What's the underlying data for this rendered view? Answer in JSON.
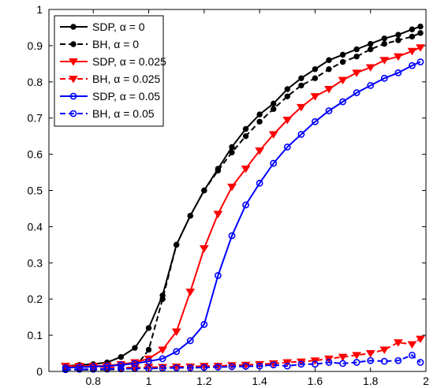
{
  "chart_data": {
    "type": "line",
    "title": "",
    "xlabel": "",
    "ylabel": "",
    "xlim": [
      0.64,
      2.0
    ],
    "ylim": [
      0,
      1.0
    ],
    "grid": false,
    "legend_placement": "top-left",
    "xticks": [
      "0.8",
      "1",
      "1.2",
      "1.4",
      "1.6",
      "1.8",
      "2"
    ],
    "yticks": [
      "0",
      "0.1",
      "0.2",
      "0.3",
      "0.4",
      "0.5",
      "0.6",
      "0.7",
      "0.8",
      "0.9",
      "1"
    ],
    "series": [
      {
        "name": "SDP, α = 0",
        "color": "#000000",
        "style": "solid",
        "marker": "dot",
        "x": [
          0.7,
          0.75,
          0.8,
          0.85,
          0.9,
          0.95,
          1.0,
          1.05,
          1.1,
          1.15,
          1.2,
          1.25,
          1.3,
          1.35,
          1.4,
          1.45,
          1.5,
          1.55,
          1.6,
          1.65,
          1.7,
          1.75,
          1.8,
          1.85,
          1.9,
          1.95,
          1.98
        ],
        "y": [
          0.015,
          0.018,
          0.02,
          0.025,
          0.04,
          0.065,
          0.12,
          0.21,
          0.35,
          0.43,
          0.5,
          0.56,
          0.62,
          0.67,
          0.71,
          0.74,
          0.78,
          0.81,
          0.835,
          0.86,
          0.875,
          0.89,
          0.905,
          0.92,
          0.93,
          0.945,
          0.953
        ]
      },
      {
        "name": "BH, α = 0",
        "color": "#000000",
        "style": "dashed",
        "marker": "dot",
        "x": [
          0.7,
          0.75,
          0.8,
          0.85,
          0.9,
          0.95,
          1.0,
          1.05,
          1.1,
          1.15,
          1.2,
          1.25,
          1.3,
          1.35,
          1.4,
          1.45,
          1.5,
          1.55,
          1.6,
          1.65,
          1.7,
          1.75,
          1.8,
          1.85,
          1.9,
          1.95,
          1.98
        ],
        "y": [
          0.005,
          0.005,
          0.005,
          0.005,
          0.006,
          0.01,
          0.06,
          0.2,
          0.35,
          0.43,
          0.5,
          0.555,
          0.605,
          0.65,
          0.69,
          0.725,
          0.76,
          0.79,
          0.81,
          0.835,
          0.855,
          0.87,
          0.89,
          0.905,
          0.915,
          0.925,
          0.935
        ]
      },
      {
        "name": "SDP, α = 0.025",
        "color": "#ff0000",
        "style": "solid",
        "marker": "triangle-down",
        "x": [
          0.7,
          0.75,
          0.8,
          0.85,
          0.9,
          0.95,
          1.0,
          1.05,
          1.1,
          1.15,
          1.2,
          1.25,
          1.3,
          1.35,
          1.4,
          1.45,
          1.5,
          1.55,
          1.6,
          1.65,
          1.7,
          1.75,
          1.8,
          1.85,
          1.9,
          1.95,
          1.98
        ],
        "y": [
          0.015,
          0.015,
          0.015,
          0.016,
          0.02,
          0.025,
          0.035,
          0.06,
          0.11,
          0.22,
          0.34,
          0.435,
          0.51,
          0.56,
          0.61,
          0.655,
          0.695,
          0.73,
          0.76,
          0.78,
          0.805,
          0.825,
          0.84,
          0.86,
          0.87,
          0.885,
          0.895
        ]
      },
      {
        "name": "BH, α = 0.025",
        "color": "#ff0000",
        "style": "dashed",
        "marker": "triangle-down",
        "x": [
          0.7,
          0.75,
          0.8,
          0.85,
          0.9,
          0.95,
          1.0,
          1.05,
          1.1,
          1.15,
          1.2,
          1.25,
          1.3,
          1.35,
          1.4,
          1.45,
          1.5,
          1.55,
          1.6,
          1.65,
          1.7,
          1.75,
          1.8,
          1.85,
          1.9,
          1.95,
          1.98
        ],
        "y": [
          0.015,
          0.013,
          0.012,
          0.012,
          0.011,
          0.011,
          0.012,
          0.012,
          0.013,
          0.013,
          0.015,
          0.015,
          0.017,
          0.018,
          0.02,
          0.022,
          0.025,
          0.027,
          0.03,
          0.035,
          0.04,
          0.045,
          0.05,
          0.06,
          0.08,
          0.075,
          0.09
        ]
      },
      {
        "name": "SDP, α = 0.05",
        "color": "#0000ff",
        "style": "solid",
        "marker": "circle-open",
        "x": [
          0.7,
          0.75,
          0.8,
          0.85,
          0.9,
          0.95,
          1.0,
          1.05,
          1.1,
          1.15,
          1.2,
          1.25,
          1.3,
          1.35,
          1.4,
          1.45,
          1.5,
          1.55,
          1.6,
          1.65,
          1.7,
          1.75,
          1.8,
          1.85,
          1.9,
          1.95,
          1.98
        ],
        "y": [
          0.01,
          0.012,
          0.013,
          0.015,
          0.018,
          0.022,
          0.028,
          0.035,
          0.055,
          0.085,
          0.13,
          0.265,
          0.375,
          0.46,
          0.52,
          0.575,
          0.62,
          0.655,
          0.69,
          0.72,
          0.745,
          0.77,
          0.79,
          0.81,
          0.825,
          0.845,
          0.855
        ]
      },
      {
        "name": "BH, α = 0.05",
        "color": "#0000ff",
        "style": "dashed",
        "marker": "circle-open",
        "x": [
          0.7,
          0.75,
          0.8,
          0.85,
          0.9,
          0.95,
          1.0,
          1.05,
          1.1,
          1.15,
          1.2,
          1.25,
          1.3,
          1.35,
          1.4,
          1.45,
          1.5,
          1.55,
          1.6,
          1.65,
          1.7,
          1.75,
          1.8,
          1.85,
          1.9,
          1.95,
          1.98
        ],
        "y": [
          0.005,
          0.006,
          0.006,
          0.007,
          0.007,
          0.008,
          0.008,
          0.009,
          0.01,
          0.01,
          0.011,
          0.012,
          0.013,
          0.014,
          0.015,
          0.018,
          0.015,
          0.02,
          0.02,
          0.025,
          0.022,
          0.025,
          0.03,
          0.028,
          0.03,
          0.045,
          0.025
        ]
      }
    ]
  }
}
